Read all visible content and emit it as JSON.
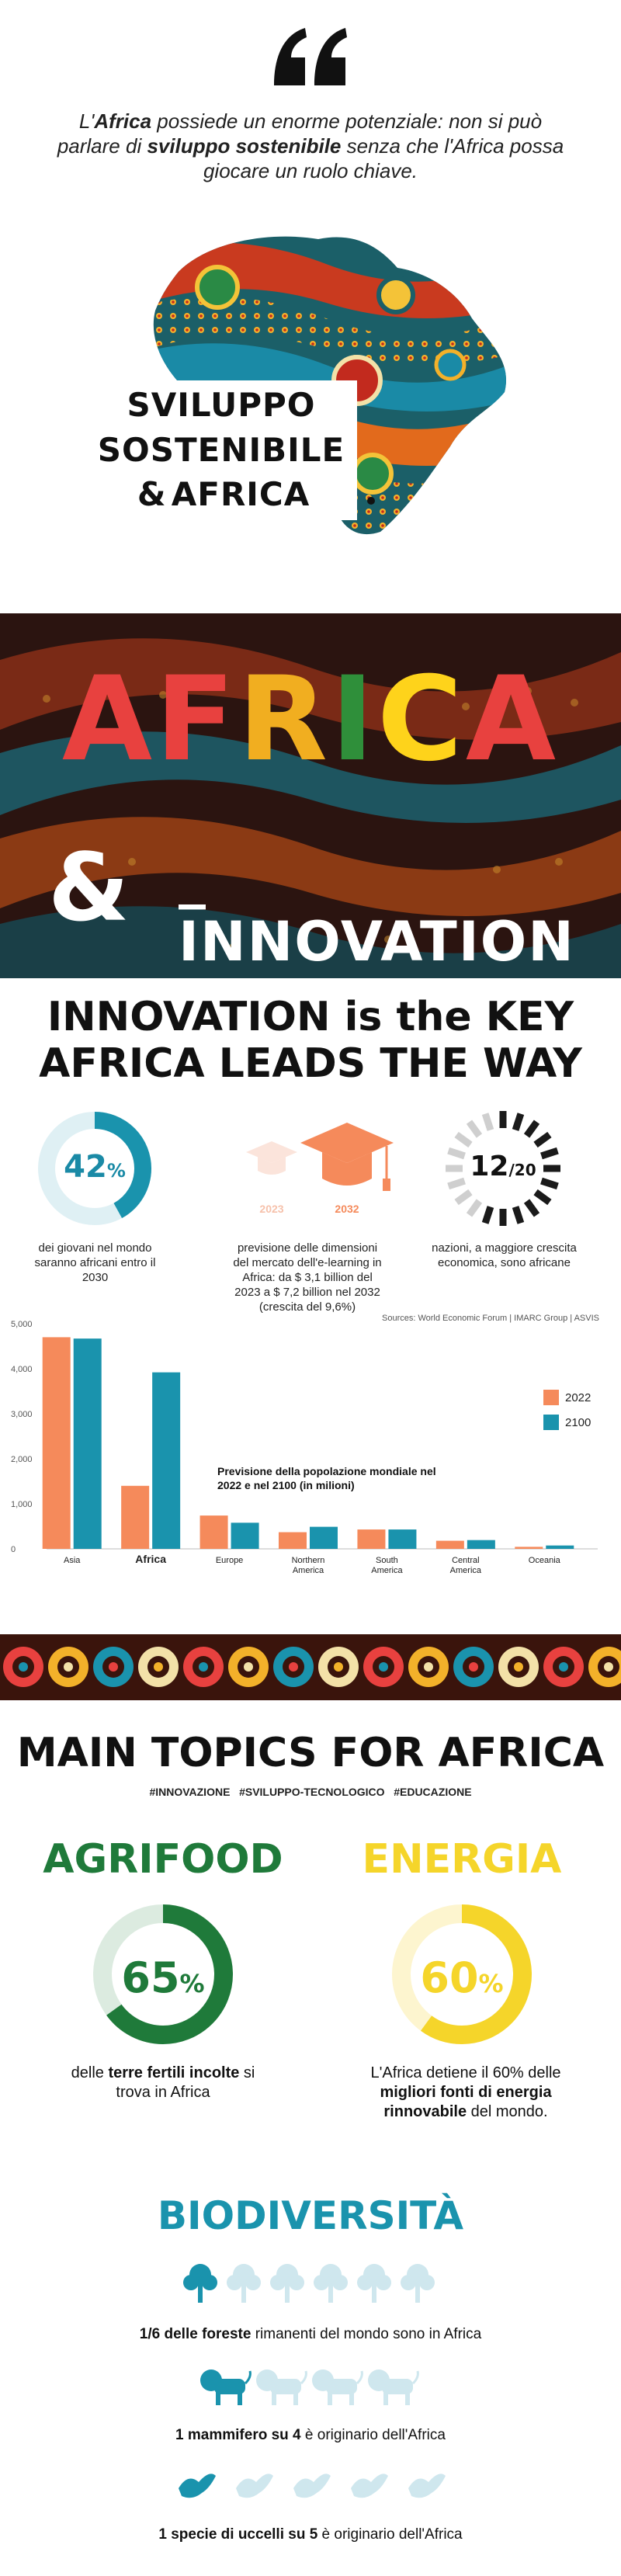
{
  "intro": {
    "quote_parts": [
      {
        "t": "L'",
        "b": false
      },
      {
        "t": "Africa",
        "b": true
      },
      {
        "t": " possiede un enorme potenziale: non si può parlare di ",
        "b": false
      },
      {
        "t": "sviluppo sostenibile",
        "b": true
      },
      {
        "t": " senza che l'Africa possa giocare un ruolo chiave.",
        "b": false
      }
    ],
    "logo_line1": "SVILUPPO",
    "logo_line2": "SOSTENIBILE",
    "logo_line3": "AFRICA"
  },
  "banner": {
    "letters": [
      {
        "ch": "A",
        "color": "#e8413f"
      },
      {
        "ch": "F",
        "color": "#e8413f"
      },
      {
        "ch": "R",
        "color": "#f1ae20"
      },
      {
        "ch": "I",
        "color": "#2f8f3a"
      },
      {
        "ch": "C",
        "color": "#fed31b"
      },
      {
        "ch": "A",
        "color": "#e8413f"
      }
    ],
    "innovation": "_ INNOVATION"
  },
  "innovation": {
    "heading_line1": "INNOVATION is the KEY",
    "heading_line2": "AFRICA LEADS THE WAY",
    "stat1": {
      "value": "42",
      "unit": "%",
      "pct": 0.42,
      "caption": "dei giovani nel mondo saranno africani entro il 2030"
    },
    "stat2": {
      "year_a": "2023",
      "year_b": "2032",
      "caption": "previsione delle dimensioni del mercato dell'e-learning in Africa: da $ 3,1 billion del 2023 a $ 7,2 billion nel 2032 (crescita del 9,6%)"
    },
    "stat3": {
      "value": "12",
      "total": "/20",
      "fraction": 0.6,
      "caption": "nazioni, a maggiore crescita economica, sono africane"
    },
    "sources": "Sources: World Economic Forum | IMARC Group | ASVIS"
  },
  "chart_data": {
    "type": "bar",
    "title": "Previsione della popolazione mondiale nel 2022 e nel 2100 (in milioni)",
    "categories": [
      "Asia",
      "Africa",
      "Europe",
      "Northern America",
      "South America",
      "Central America",
      "Oceania"
    ],
    "series": [
      {
        "name": "2022",
        "color": "#f58a5b",
        "values": [
          4700,
          1400,
          740,
          370,
          430,
          180,
          45
        ]
      },
      {
        "name": "2100",
        "color": "#1a93ad",
        "values": [
          4670,
          3920,
          580,
          490,
          430,
          195,
          75
        ]
      }
    ],
    "yticks": [
      "0",
      "1,000",
      "2,000",
      "3,000",
      "4,000",
      "5,000"
    ],
    "ylim": [
      0,
      5000
    ],
    "legend": "top-right"
  },
  "topics": {
    "heading": "MAIN TOPICS FOR AFRICA",
    "hashtags": "#INNOVAZIONE   #SVILUPPO-TECNOLOGICO   #EDUCAZIONE",
    "agrifood": {
      "title": "AGRIFOOD",
      "color": "#1f7a3a",
      "value": "65",
      "unit": "%",
      "pct": 0.65,
      "cap_pre": "delle ",
      "cap_bold": "terre fertili incolte",
      "cap_post": " si trova in Africa"
    },
    "energia": {
      "title": "ENERGIA",
      "color": "#f5d52a",
      "value": "60",
      "unit": "%",
      "pct": 0.6,
      "cap_pre": "L'Africa detiene il 60% delle ",
      "cap_bold": "migliori fonti di energia rinnovabile",
      "cap_post": " del mondo."
    },
    "biodiversita": {
      "title": "BIODIVERSITÀ",
      "color": "#1a93ad",
      "forests": {
        "bold": "1/6 delle foreste",
        "rest": " rimanenti del mondo sono in Africa",
        "filled": 1,
        "total": 6
      },
      "mammals": {
        "bold": "1 mammifero su 4",
        "rest": " è originario dell'Africa",
        "filled": 1,
        "total": 4
      },
      "birds": {
        "bold": "1 specie di uccelli su 5",
        "rest": " è originario dell'Africa",
        "filled": 1,
        "total": 5
      }
    }
  }
}
